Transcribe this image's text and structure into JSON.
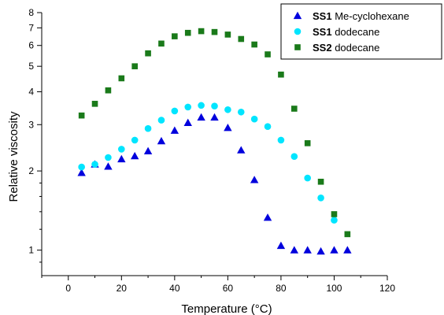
{
  "chart_data": {
    "type": "scatter",
    "xlabel": "Temperature (°C)",
    "ylabel": "Relative viscosity",
    "xlim": [
      -10,
      120
    ],
    "ylim": [
      0.8,
      8
    ],
    "yscale": "log",
    "xticks": [
      0,
      20,
      40,
      60,
      80,
      100,
      120
    ],
    "yticks": [
      1,
      2,
      3,
      4,
      5,
      6,
      7,
      8
    ],
    "grid": false,
    "legend_position": "top-right",
    "series": [
      {
        "name": "SS1",
        "name_suffix": "Me-cyclohexane",
        "marker": "triangle",
        "color": "#0000dd",
        "x": [
          5,
          10,
          15,
          20,
          25,
          30,
          35,
          40,
          45,
          50,
          55,
          60,
          65,
          70,
          75,
          80,
          85,
          90,
          95,
          100,
          105
        ],
        "y": [
          1.97,
          2.12,
          2.08,
          2.22,
          2.28,
          2.38,
          2.6,
          2.85,
          3.05,
          3.2,
          3.2,
          2.92,
          2.4,
          1.85,
          1.33,
          1.04,
          1.0,
          1.0,
          0.99,
          1.0,
          1.0
        ]
      },
      {
        "name": "SS1",
        "name_suffix": "dodecane",
        "marker": "circle",
        "color": "#00e5ff",
        "x": [
          5,
          10,
          15,
          20,
          25,
          30,
          35,
          40,
          45,
          50,
          55,
          60,
          65,
          70,
          75,
          80,
          85,
          90,
          95,
          100
        ],
        "y": [
          2.07,
          2.12,
          2.25,
          2.42,
          2.62,
          2.9,
          3.12,
          3.38,
          3.5,
          3.55,
          3.53,
          3.42,
          3.35,
          3.15,
          2.95,
          2.62,
          2.27,
          1.88,
          1.58,
          1.3
        ]
      },
      {
        "name": "SS2",
        "name_suffix": "dodecane",
        "marker": "square",
        "color": "#1a7a1a",
        "x": [
          5,
          10,
          15,
          20,
          25,
          30,
          35,
          40,
          45,
          50,
          55,
          60,
          65,
          70,
          75,
          80,
          85,
          90,
          95,
          100,
          105
        ],
        "y": [
          3.25,
          3.6,
          4.05,
          4.5,
          5.0,
          5.6,
          6.1,
          6.5,
          6.7,
          6.8,
          6.75,
          6.6,
          6.35,
          6.05,
          5.55,
          4.65,
          3.45,
          2.55,
          1.82,
          1.37,
          1.15
        ]
      }
    ]
  }
}
